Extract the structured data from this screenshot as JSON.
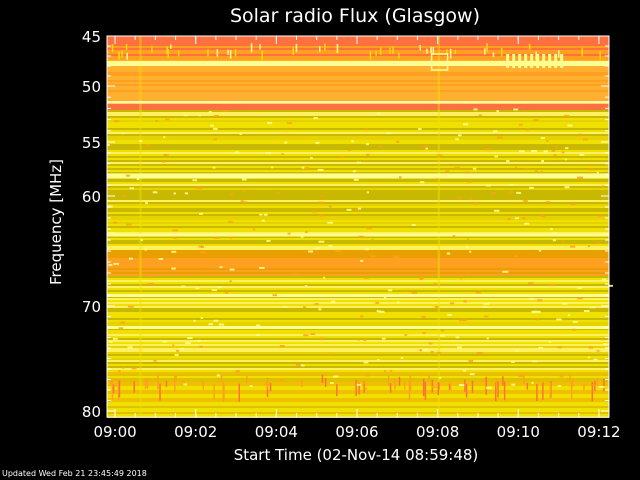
{
  "chart_data": {
    "type": "heatmap",
    "title": "Solar radio Flux (Glasgow)",
    "xlabel": "Start Time (02-Nov-14 08:59:48)",
    "ylabel": "Frequency [MHz]",
    "x_tick_labels": [
      "09:00",
      "09:02",
      "09:04",
      "09:06",
      "09:08",
      "09:10",
      "09:12"
    ],
    "y_tick_labels": [
      "45",
      "50",
      "55",
      "60",
      "70",
      "80"
    ],
    "ylim": [
      45,
      80
    ],
    "y_ticks": [
      45,
      50,
      55,
      60,
      70,
      80
    ],
    "x_ticks_minutes": [
      0.2,
      2.2,
      4.2,
      6.2,
      8.2,
      10.2,
      12.2
    ],
    "xlim_minutes": [
      0,
      12.45
    ],
    "colors": {
      "background": "#000000",
      "low": "#c8b800",
      "mid": "#f0e000",
      "high": "#ffa020",
      "peak": "#ff7040",
      "bright": "#ffff90"
    }
  },
  "footer": {
    "updated": "Updated Wed Feb 21 23:45:49 2018"
  }
}
